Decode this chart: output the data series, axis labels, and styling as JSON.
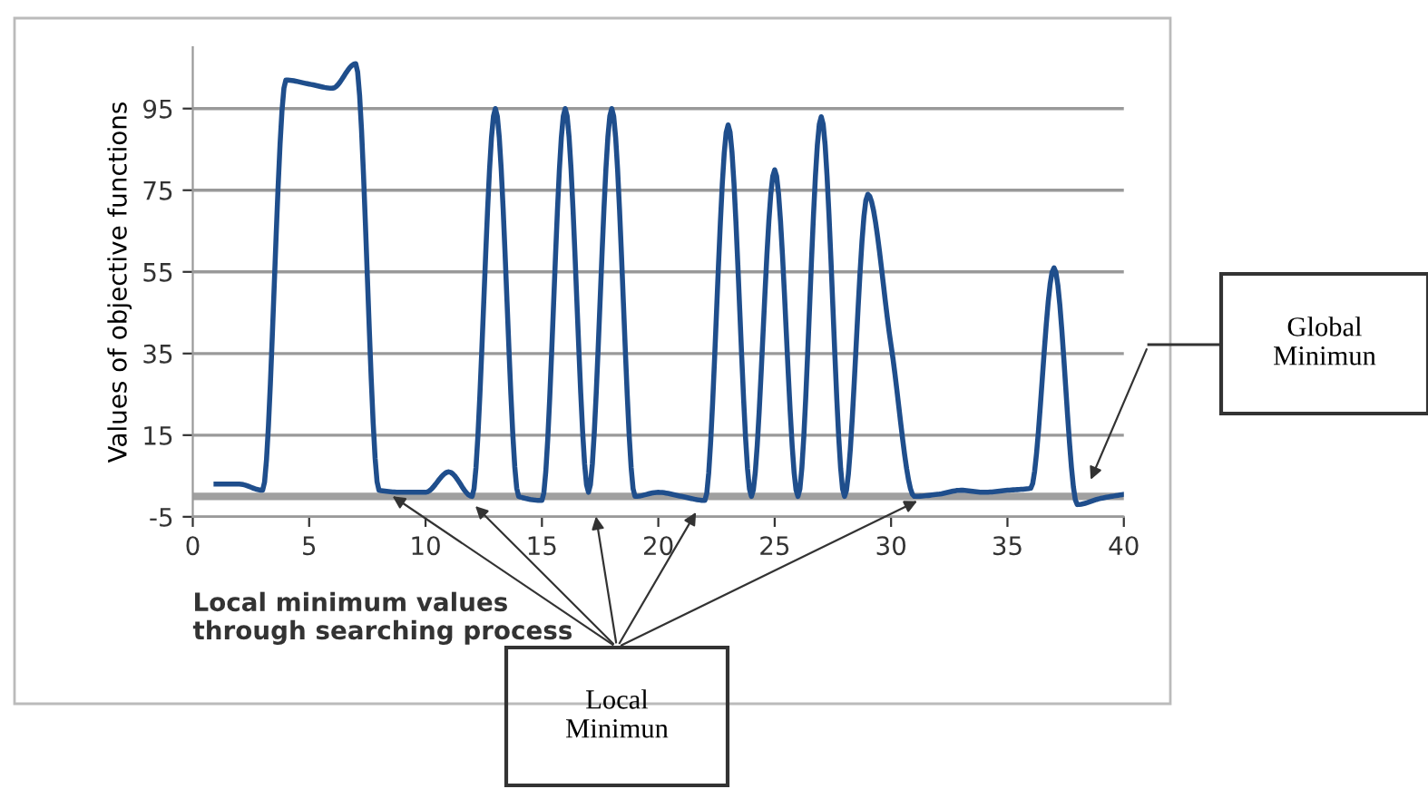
{
  "chart_data": {
    "type": "line",
    "ylabel": "Values of objective functions",
    "xlabel": "Local minimum values\nthrough searching process",
    "x": [
      1,
      2,
      3,
      4,
      5,
      6,
      7,
      8,
      9,
      10,
      11,
      12,
      13,
      14,
      15,
      16,
      17,
      18,
      19,
      20,
      21,
      22,
      23,
      24,
      25,
      26,
      27,
      28,
      29,
      30,
      31,
      32,
      33,
      34,
      35,
      36,
      37,
      38,
      39,
      40
    ],
    "series": [
      {
        "color": "#1f4e8c",
        "values": [
          3,
          3,
          1.5,
          102,
          101,
          100,
          106,
          1.5,
          1,
          1,
          6,
          0,
          95,
          0,
          -1,
          95,
          1,
          95,
          0,
          1,
          0,
          -1,
          91,
          0,
          80,
          0,
          93,
          0,
          74,
          37,
          0,
          0.5,
          1.5,
          1,
          1.5,
          2,
          56,
          -2,
          -0.5,
          0.5
        ]
      }
    ],
    "xlim": [
      0,
      40
    ],
    "xticks": [
      0,
      5,
      10,
      15,
      20,
      25,
      30,
      35,
      40
    ],
    "ylim": [
      -5,
      110
    ],
    "yticks": [
      -5,
      15,
      35,
      55,
      75,
      95
    ],
    "grid": "y",
    "marker": "none",
    "line_style": "solid",
    "ref_lines": [
      {
        "axis": "y",
        "value": 0,
        "color": "#a0a0a0"
      }
    ],
    "annotations": [
      "Local\nMinimun",
      "Global\nMinimun"
    ]
  }
}
